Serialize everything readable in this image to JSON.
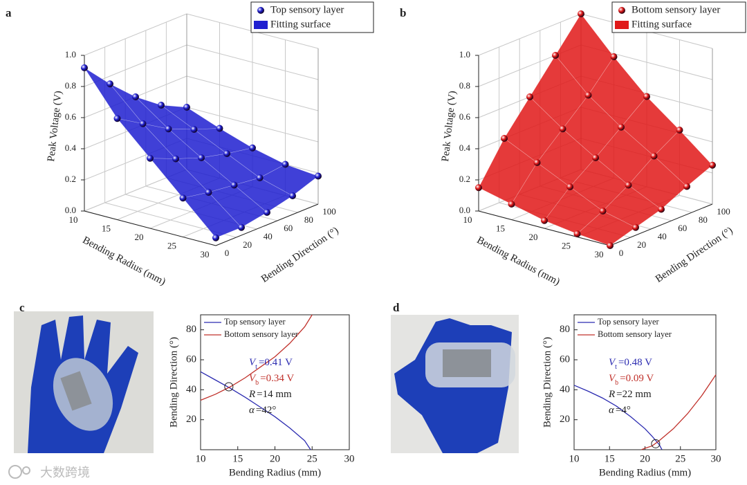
{
  "chart_data": [
    {
      "type": "surface3d",
      "panel": "a",
      "legend": [
        "Top sensory layer",
        "Fitting surface"
      ],
      "color": "#1f1fd0",
      "xlabel": "Bending Radius (mm)",
      "ylabel": "Bending Direction (°)",
      "zlabel": "Peak Voltage (V)",
      "radius": [
        10,
        15,
        20,
        25,
        30
      ],
      "direction": [
        0,
        25,
        50,
        75,
        100
      ],
      "values": [
        [
          0.92,
          0.75,
          0.6,
          0.48,
          0.4
        ],
        [
          0.65,
          0.55,
          0.45,
          0.38,
          0.32
        ],
        [
          0.45,
          0.38,
          0.32,
          0.28,
          0.25
        ],
        [
          0.25,
          0.22,
          0.2,
          0.18,
          0.2
        ],
        [
          0.05,
          0.05,
          0.08,
          0.12,
          0.18
        ]
      ],
      "xlim": [
        10,
        30
      ],
      "ylim": [
        0,
        100
      ],
      "zlim": [
        0,
        1
      ],
      "xticks": [
        10,
        15,
        20,
        25,
        30
      ],
      "yticks": [
        0,
        20,
        40,
        60,
        80,
        100
      ],
      "zticks": [
        {
          "value": 0,
          "label": "0.0"
        },
        0.2,
        0.4,
        0.6,
        0.8,
        {
          "value": 1,
          "label": "1.0"
        }
      ]
    },
    {
      "type": "surface3d",
      "panel": "b",
      "legend": [
        "Bottom sensory layer",
        "Fitting surface"
      ],
      "color": "#e01818",
      "xlabel": "Bending Radius (mm)",
      "ylabel": "Bending Direction (°)",
      "zlabel": "Peak Voltage (V)",
      "radius": [
        10,
        15,
        20,
        25,
        30
      ],
      "direction": [
        0,
        25,
        50,
        75,
        100
      ],
      "values": [
        [
          0.15,
          0.4,
          0.6,
          0.8,
          1.0
        ],
        [
          0.1,
          0.3,
          0.45,
          0.6,
          0.78
        ],
        [
          0.05,
          0.2,
          0.32,
          0.45,
          0.58
        ],
        [
          0.02,
          0.1,
          0.2,
          0.32,
          0.42
        ],
        [
          0.0,
          0.05,
          0.1,
          0.18,
          0.25
        ]
      ],
      "xlim": [
        10,
        30
      ],
      "ylim": [
        0,
        100
      ],
      "zlim": [
        0,
        1
      ],
      "xticks": [
        10,
        15,
        20,
        25,
        30
      ],
      "yticks": [
        0,
        20,
        40,
        60,
        80,
        100
      ],
      "zticks": [
        {
          "value": 0,
          "label": "0.0"
        },
        0.2,
        0.4,
        0.6,
        0.8,
        {
          "value": 1,
          "label": "1.0"
        }
      ]
    },
    {
      "type": "line",
      "panel": "c",
      "xlabel": "Bending Radius (mm)",
      "ylabel": "Bending Direction (°)",
      "xlim": [
        10,
        30
      ],
      "ylim": [
        0,
        90
      ],
      "xticks": [
        10,
        15,
        20,
        25,
        30
      ],
      "yticks": [
        20,
        40,
        60,
        80
      ],
      "series": [
        {
          "name": "Top sensory layer",
          "color": "#2a2ab0",
          "x": [
            10,
            12,
            14,
            16,
            18,
            20,
            22,
            24,
            24.8
          ],
          "values": [
            52,
            46.5,
            41,
            35,
            28.5,
            22,
            14.5,
            6,
            0
          ]
        },
        {
          "name": "Bottom sensory layer",
          "color": "#c0302a",
          "x": [
            10,
            12,
            14,
            16,
            18,
            20,
            22,
            24,
            25
          ],
          "values": [
            33,
            37,
            42,
            48,
            55,
            62,
            71,
            82,
            90
          ]
        }
      ],
      "intersection": {
        "x": 13.8,
        "y": 42
      },
      "annotations": [
        {
          "var": "V",
          "sub": "t",
          "text": "=0.41 V",
          "color": "#2a2ab0"
        },
        {
          "var": "V",
          "sub": "b",
          "text": "=0.34 V",
          "color": "#c0302a"
        },
        {
          "var": "R",
          "text": "=14 mm",
          "color": "#222222"
        },
        {
          "var": "α",
          "text": "=42°",
          "color": "#222222"
        }
      ]
    },
    {
      "type": "line",
      "panel": "d",
      "xlabel": "Bending Radius (mm)",
      "ylabel": "Bending Direction (°)",
      "xlim": [
        10,
        30
      ],
      "ylim": [
        0,
        90
      ],
      "xticks": [
        10,
        15,
        20,
        25,
        30
      ],
      "yticks": [
        20,
        40,
        60,
        80
      ],
      "series": [
        {
          "name": "Top sensory layer",
          "color": "#2a2ab0",
          "x": [
            10,
            12,
            14,
            16,
            18,
            20,
            21,
            22,
            22.4
          ],
          "values": [
            43,
            39,
            34.5,
            29,
            22,
            14,
            9,
            3.5,
            0
          ]
        },
        {
          "name": "Bottom sensory layer",
          "color": "#c0302a",
          "x": [
            19.5,
            20,
            21,
            22,
            24,
            26,
            28,
            30
          ],
          "values": [
            0,
            1,
            2.5,
            6,
            14,
            24,
            36,
            50
          ]
        }
      ],
      "intersection": {
        "x": 21.5,
        "y": 4
      },
      "annotations": [
        {
          "var": "V",
          "sub": "t",
          "text": "=0.48 V",
          "color": "#2a2ab0"
        },
        {
          "var": "V",
          "sub": "b",
          "text": "=0.09 V",
          "color": "#c0302a"
        },
        {
          "var": "R",
          "text": "=22 mm",
          "color": "#222222"
        },
        {
          "var": "α",
          "text": "=4°",
          "color": "#222222"
        }
      ]
    }
  ],
  "watermark": "大数跨境"
}
